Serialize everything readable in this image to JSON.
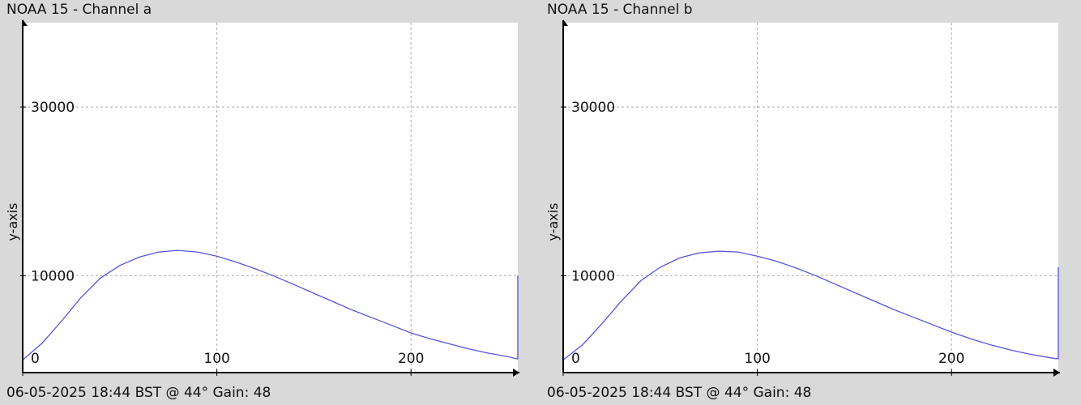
{
  "colors": {
    "background": "#d9d9d9",
    "plot_bg": "#ffffff",
    "series": "#5555dd",
    "grid": "#aaaaaa",
    "axis": "#000000"
  },
  "panels": [
    {
      "title": "NOAA 15 - Channel a",
      "footer": "06-05-2025 18:44 BST @ 44° Gain: 48"
    },
    {
      "title": "NOAA 15 - Channel b",
      "footer": "06-05-2025 18:44 BST @ 44° Gain: 48"
    }
  ],
  "chart_data": [
    {
      "type": "line",
      "title": "NOAA 15 - Channel a",
      "xlabel": "",
      "ylabel": "y-axis",
      "xlim": [
        0,
        255
      ],
      "ylim": [
        -1500,
        40000
      ],
      "x_ticks": [
        0,
        100,
        200
      ],
      "y_ticks": [
        10000,
        30000
      ],
      "grid": true,
      "series": [
        {
          "x": [
            0,
            10,
            20,
            30,
            40,
            50,
            60,
            70,
            80,
            90,
            100,
            110,
            120,
            130,
            140,
            150,
            160,
            170,
            180,
            190,
            200,
            210,
            220,
            230,
            240,
            250,
            254,
            255,
            255
          ],
          "y": [
            0,
            2000,
            4600,
            7400,
            9700,
            11200,
            12200,
            12800,
            13000,
            12800,
            12300,
            11600,
            10800,
            9900,
            8900,
            7900,
            6900,
            5900,
            5000,
            4100,
            3200,
            2500,
            1900,
            1300,
            800,
            400,
            150,
            150,
            10000
          ]
        }
      ]
    },
    {
      "type": "line",
      "title": "NOAA 15 - Channel b",
      "xlabel": "",
      "ylabel": "y-axis",
      "xlim": [
        0,
        255
      ],
      "ylim": [
        -1500,
        40000
      ],
      "x_ticks": [
        0,
        100,
        200
      ],
      "y_ticks": [
        10000,
        30000
      ],
      "grid": true,
      "series": [
        {
          "x": [
            0,
            10,
            20,
            30,
            40,
            50,
            60,
            70,
            80,
            90,
            100,
            110,
            120,
            130,
            140,
            150,
            160,
            170,
            180,
            190,
            200,
            210,
            220,
            230,
            240,
            250,
            254,
            255,
            255
          ],
          "y": [
            0,
            1800,
            4300,
            7000,
            9400,
            11000,
            12100,
            12700,
            12900,
            12800,
            12300,
            11700,
            10900,
            10000,
            9000,
            8000,
            7000,
            6000,
            5100,
            4200,
            3300,
            2500,
            1800,
            1200,
            700,
            300,
            150,
            150,
            11000
          ]
        }
      ]
    }
  ]
}
